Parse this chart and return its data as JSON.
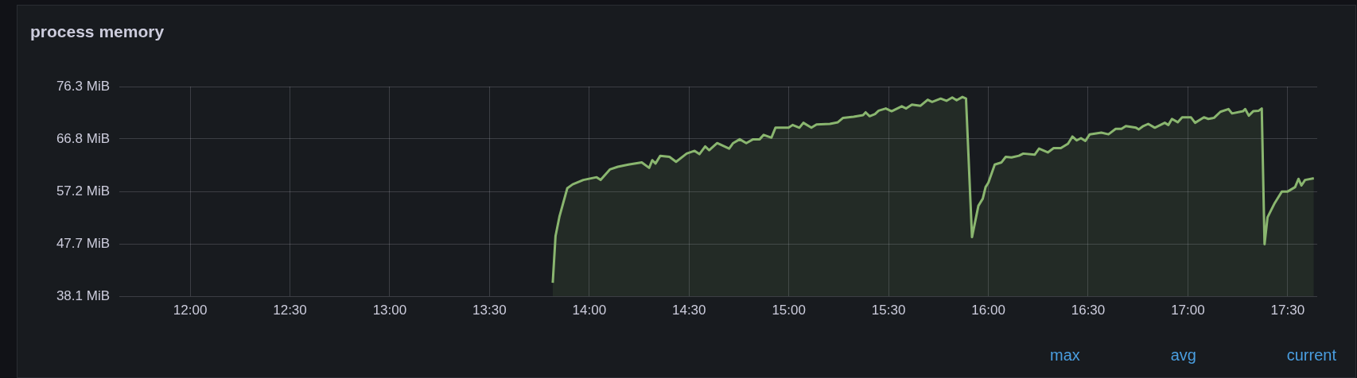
{
  "chart_data": {
    "type": "area",
    "title": "process memory",
    "color": "#8ab66f",
    "marker": "none",
    "grid": true,
    "x": [
      13.817,
      13.831,
      13.851,
      13.89,
      13.917,
      13.97,
      14.037,
      14.057,
      14.103,
      14.143,
      14.196,
      14.263,
      14.3,
      14.316,
      14.332,
      14.356,
      14.402,
      14.435,
      14.488,
      14.528,
      14.552,
      14.581,
      14.601,
      14.641,
      14.701,
      14.721,
      14.754,
      14.787,
      14.821,
      14.854,
      14.874,
      14.913,
      14.933,
      14.999,
      15.019,
      15.053,
      15.073,
      15.113,
      15.139,
      15.206,
      15.246,
      15.272,
      15.325,
      15.372,
      15.385,
      15.405,
      15.432,
      15.45,
      15.486,
      15.515,
      15.566,
      15.588,
      15.617,
      15.66,
      15.696,
      15.718,
      15.761,
      15.79,
      15.819,
      15.841,
      15.87,
      15.888,
      15.918,
      15.95,
      15.972,
      15.986,
      16.0,
      16.032,
      16.066,
      16.087,
      16.116,
      16.153,
      16.175,
      16.232,
      16.254,
      16.298,
      16.327,
      16.363,
      16.399,
      16.421,
      16.443,
      16.464,
      16.486,
      16.508,
      16.566,
      16.602,
      16.638,
      16.667,
      16.689,
      16.74,
      16.754,
      16.776,
      16.801,
      16.834,
      16.884,
      16.902,
      16.92,
      16.949,
      16.971,
      17.015,
      17.036,
      17.08,
      17.102,
      17.131,
      17.163,
      17.203,
      17.221,
      17.276,
      17.287,
      17.305,
      17.327,
      17.355,
      17.37,
      17.384,
      17.399,
      17.435,
      17.471,
      17.5,
      17.537,
      17.554,
      17.569,
      17.587,
      17.631
    ],
    "values": [
      40.6,
      49.1,
      52.7,
      57.8,
      58.5,
      59.3,
      59.8,
      59.3,
      61.2,
      61.7,
      62.1,
      62.5,
      61.5,
      62.9,
      62.3,
      63.7,
      63.5,
      62.6,
      64.1,
      64.6,
      64.0,
      65.4,
      64.7,
      66.0,
      65.0,
      66.0,
      66.7,
      66.0,
      66.7,
      66.7,
      67.5,
      67.0,
      68.8,
      68.8,
      69.3,
      68.8,
      69.7,
      68.8,
      69.4,
      69.5,
      69.8,
      70.6,
      70.8,
      71.1,
      71.6,
      70.9,
      71.3,
      71.9,
      72.3,
      71.8,
      72.7,
      72.3,
      73.0,
      72.8,
      73.9,
      73.5,
      74.1,
      73.7,
      74.3,
      73.8,
      74.4,
      74.1,
      48.9,
      54.6,
      55.9,
      58.0,
      58.8,
      62.1,
      62.5,
      63.5,
      63.4,
      63.7,
      64.1,
      63.9,
      65.0,
      64.3,
      65.1,
      65.1,
      65.9,
      67.2,
      66.5,
      66.9,
      66.4,
      67.6,
      67.9,
      67.6,
      68.6,
      68.6,
      69.1,
      68.8,
      68.5,
      69.1,
      69.5,
      68.8,
      69.7,
      69.3,
      70.4,
      69.8,
      70.7,
      70.7,
      69.7,
      70.7,
      70.4,
      70.6,
      71.7,
      72.2,
      71.4,
      71.8,
      72.2,
      71.0,
      71.8,
      71.9,
      72.3,
      47.6,
      52.5,
      55.1,
      57.2,
      57.2,
      58.0,
      59.5,
      58.3,
      59.3,
      59.6
    ],
    "xlim": [
      11.645,
      17.648
    ],
    "xticks": [
      {
        "value": 12,
        "label": "12:00"
      },
      {
        "value": 12.5,
        "label": "12:30"
      },
      {
        "value": 13,
        "label": "13:00"
      },
      {
        "value": 13.5,
        "label": "13:30"
      },
      {
        "value": 14,
        "label": "14:00"
      },
      {
        "value": 14.5,
        "label": "14:30"
      },
      {
        "value": 15,
        "label": "15:00"
      },
      {
        "value": 15.5,
        "label": "15:30"
      },
      {
        "value": 16,
        "label": "16:00"
      },
      {
        "value": 16.5,
        "label": "16:30"
      },
      {
        "value": 17,
        "label": "17:00"
      },
      {
        "value": 17.5,
        "label": "17:30"
      }
    ],
    "ylim": [
      38.15,
      76.29
    ],
    "yticks": [
      {
        "value": 38.15,
        "label": "38.1 MiB"
      },
      {
        "value": 47.68,
        "label": "47.7 MiB"
      },
      {
        "value": 57.22,
        "label": "57.2 MiB"
      },
      {
        "value": 66.76,
        "label": "66.8 MiB"
      },
      {
        "value": 76.29,
        "label": "76.3 MiB"
      }
    ],
    "annotations": [
      "max",
      "avg",
      "current"
    ]
  }
}
